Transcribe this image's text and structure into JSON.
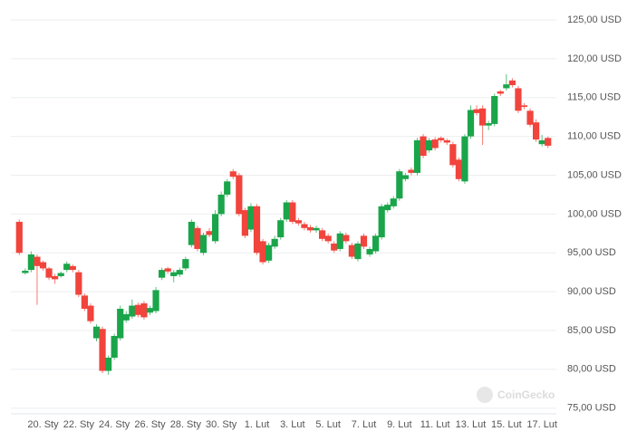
{
  "chart_data": {
    "type": "candlestick",
    "categories": [
      null,
      null,
      null,
      null,
      "20. Sty",
      null,
      null,
      null,
      null,
      null,
      "22. Sty",
      null,
      null,
      null,
      null,
      null,
      "24. Sty",
      null,
      null,
      null,
      null,
      null,
      "26. Sty",
      null,
      null,
      null,
      null,
      null,
      "28. Sty",
      null,
      null,
      null,
      null,
      null,
      "30. Sty",
      null,
      null,
      null,
      null,
      null,
      "1. Lut",
      null,
      null,
      null,
      null,
      null,
      "3. Lut",
      null,
      null,
      null,
      null,
      null,
      "5. Lut",
      null,
      null,
      null,
      null,
      null,
      "7. Lut",
      null,
      null,
      null,
      null,
      null,
      "9. Lut",
      null,
      null,
      null,
      null,
      null,
      "11. Lut",
      null,
      null,
      null,
      null,
      null,
      "13. Lut",
      null,
      null,
      null,
      null,
      null,
      "15. Lut",
      null,
      null,
      null,
      null,
      null,
      "17. Lut",
      null
    ],
    "open": [
      99.0,
      92.4,
      92.8,
      94.5,
      93.8,
      93.0,
      92.0,
      92.0,
      92.8,
      93.3,
      92.5,
      89.5,
      88.2,
      84.0,
      85.2,
      79.8,
      81.5,
      84.0,
      86.3,
      86.8,
      88.3,
      88.5,
      87.3,
      87.5,
      91.8,
      93.0,
      92.0,
      92.2,
      93.0,
      96.0,
      98.2,
      95.0,
      97.8,
      96.5,
      100.0,
      102.5,
      105.5,
      105.0,
      100.5,
      98.0,
      101.0,
      96.5,
      94.0,
      95.8,
      97.0,
      99.3,
      101.5,
      99.2,
      98.7,
      98.3,
      97.9,
      97.9,
      97.2,
      96.2,
      95.5,
      97.3,
      96.0,
      94.2,
      97.2,
      94.8,
      95.2,
      97.0,
      100.5,
      101.0,
      102.0,
      104.5,
      105.7,
      105.3,
      110.0,
      108.2,
      109.6,
      109.8,
      109.5,
      109.0,
      107.0,
      104.2,
      110.0,
      113.5,
      113.6,
      111.4,
      111.6,
      115.8,
      116.2,
      117.2,
      116.2,
      114.0,
      113.3,
      111.8,
      109.0,
      109.8
    ],
    "high": [
      99.3,
      93.0,
      95.2,
      94.8,
      94.0,
      93.2,
      92.3,
      92.6,
      93.9,
      93.5,
      92.8,
      89.8,
      88.5,
      85.8,
      85.5,
      81.8,
      84.6,
      88.2,
      87.5,
      89.0,
      88.6,
      88.8,
      88.2,
      90.6,
      93.1,
      93.2,
      92.8,
      93.1,
      94.5,
      99.3,
      98.5,
      97.6,
      98.2,
      100.5,
      102.9,
      104.5,
      105.8,
      105.3,
      100.8,
      101.4,
      101.3,
      96.8,
      96.3,
      97.2,
      99.5,
      101.8,
      101.8,
      99.5,
      99.0,
      98.6,
      98.5,
      98.2,
      97.5,
      96.5,
      97.8,
      97.6,
      96.3,
      96.5,
      97.5,
      95.8,
      97.5,
      101.3,
      101.5,
      102.3,
      105.8,
      105.3,
      106.0,
      109.8,
      110.3,
      109.8,
      109.9,
      110.0,
      109.7,
      109.3,
      107.3,
      110.3,
      114.0,
      114.0,
      114.0,
      112.0,
      115.5,
      116.0,
      118.0,
      117.5,
      116.5,
      114.3,
      113.6,
      112.2,
      110.2,
      110.0
    ],
    "low": [
      94.7,
      92.2,
      92.5,
      88.3,
      92.7,
      91.5,
      91.0,
      91.8,
      92.5,
      92.5,
      89.3,
      87.5,
      85.9,
      83.6,
      79.5,
      79.3,
      81.2,
      83.7,
      86.0,
      86.5,
      86.7,
      86.4,
      87.0,
      87.2,
      91.5,
      92.3,
      91.2,
      91.9,
      92.7,
      95.7,
      95.2,
      94.7,
      97.0,
      96.2,
      99.7,
      102.2,
      104.5,
      99.7,
      96.9,
      97.7,
      94.7,
      93.5,
      93.7,
      95.5,
      96.7,
      99.0,
      98.7,
      98.5,
      97.9,
      97.6,
      97.6,
      96.5,
      96.2,
      95.0,
      95.2,
      96.2,
      94.2,
      93.9,
      95.5,
      94.5,
      94.9,
      96.7,
      100.2,
      100.7,
      101.7,
      104.2,
      105.0,
      105.0,
      107.2,
      107.9,
      108.2,
      109.2,
      108.9,
      106.0,
      104.2,
      103.9,
      109.7,
      112.7,
      108.9,
      110.8,
      111.3,
      115.2,
      115.9,
      116.3,
      113.0,
      113.5,
      111.2,
      109.3,
      108.7,
      108.5
    ],
    "close": [
      95.0,
      92.7,
      94.8,
      93.3,
      93.0,
      91.8,
      91.6,
      92.4,
      93.6,
      92.8,
      89.6,
      87.8,
      86.2,
      85.5,
      79.8,
      81.5,
      84.3,
      87.8,
      87.1,
      88.2,
      87.0,
      86.7,
      87.9,
      90.2,
      92.8,
      92.6,
      92.5,
      92.8,
      94.2,
      99.0,
      95.5,
      97.3,
      97.3,
      100.0,
      102.5,
      104.2,
      104.8,
      100.0,
      97.2,
      101.0,
      95.0,
      93.8,
      96.0,
      96.8,
      99.2,
      101.5,
      99.0,
      98.8,
      98.2,
      97.9,
      98.2,
      96.8,
      96.5,
      95.3,
      97.5,
      96.5,
      94.5,
      96.2,
      95.8,
      95.5,
      97.2,
      101.0,
      101.2,
      102.0,
      105.5,
      105.0,
      105.3,
      109.5,
      107.5,
      109.5,
      108.5,
      109.5,
      109.2,
      106.3,
      104.5,
      110.0,
      113.4,
      113.0,
      111.4,
      111.7,
      115.2,
      115.5,
      116.7,
      116.6,
      113.3,
      113.8,
      111.5,
      109.6,
      109.5,
      108.8
    ],
    "up_color": "#1aa54a",
    "down_color": "#f0443c",
    "ylim": [
      74.5,
      126.4
    ],
    "yticks": [
      {
        "value": 75,
        "label": "75,00 USD"
      },
      {
        "value": 80,
        "label": "80,00 USD"
      },
      {
        "value": 85,
        "label": "85,00 USD"
      },
      {
        "value": 90,
        "label": "90,00 USD"
      },
      {
        "value": 95,
        "label": "95,00 USD"
      },
      {
        "value": 100,
        "label": "100,00 USD"
      },
      {
        "value": 105,
        "label": "105,00 USD"
      },
      {
        "value": 110,
        "label": "110,00 USD"
      },
      {
        "value": 115,
        "label": "115,00 USD"
      },
      {
        "value": 120,
        "label": "120,00 USD"
      },
      {
        "value": 125,
        "label": "125,00 USD"
      }
    ],
    "grid": true,
    "watermark": "CoinGecko"
  }
}
